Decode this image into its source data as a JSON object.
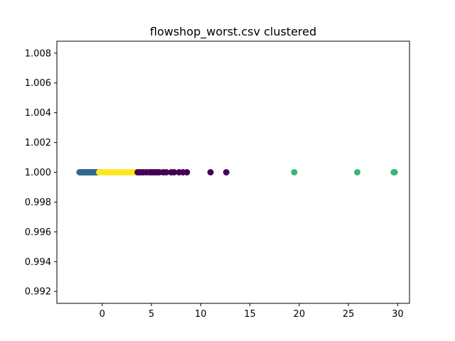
{
  "chart_data": {
    "type": "scatter",
    "title": "flowshop_worst.csv clustered",
    "xlabel": "",
    "ylabel": "",
    "xlim": [
      -4.6,
      31.2
    ],
    "ylim": [
      0.9912,
      1.0088
    ],
    "xticks": [
      0,
      5,
      10,
      15,
      20,
      25,
      30
    ],
    "xtick_labels": [
      "0",
      "5",
      "10",
      "15",
      "20",
      "25",
      "30"
    ],
    "yticks": [
      0.992,
      0.994,
      0.996,
      0.998,
      1.0,
      1.002,
      1.004,
      1.006,
      1.008
    ],
    "ytick_labels": [
      "0.992",
      "0.994",
      "0.996",
      "0.998",
      "1.000",
      "1.002",
      "1.004",
      "1.006",
      "1.008"
    ],
    "grid": false,
    "series": [
      {
        "color": "#31688e",
        "x": [
          -2.3,
          -2.2,
          -2.1,
          -2.0,
          -1.9,
          -1.8,
          -1.7,
          -1.6,
          -1.5,
          -1.4,
          -1.3,
          -1.2,
          -1.1,
          -1.0,
          -0.9,
          -0.8,
          -0.7,
          -0.6,
          -0.5
        ],
        "y": [
          1.0,
          1.0,
          1.0,
          1.0,
          1.0,
          1.0,
          1.0,
          1.0,
          1.0,
          1.0,
          1.0,
          1.0,
          1.0,
          1.0,
          1.0,
          1.0,
          1.0,
          1.0,
          1.0
        ]
      },
      {
        "color": "#fde725",
        "x": [
          -0.3,
          -0.1,
          0.1,
          0.3,
          0.5,
          0.7,
          0.9,
          1.1,
          1.3,
          1.5,
          1.7,
          1.9,
          2.1,
          2.3,
          2.5,
          2.7,
          2.9,
          3.1,
          3.3
        ],
        "y": [
          1.0,
          1.0,
          1.0,
          1.0,
          1.0,
          1.0,
          1.0,
          1.0,
          1.0,
          1.0,
          1.0,
          1.0,
          1.0,
          1.0,
          1.0,
          1.0,
          1.0,
          1.0,
          1.0
        ]
      },
      {
        "color": "#440154",
        "x": [
          3.6,
          3.8,
          4.0,
          4.2,
          4.5,
          4.8,
          5.0,
          5.2,
          5.4,
          5.6,
          5.8,
          6.2,
          6.5,
          7.0,
          7.3,
          7.8,
          8.2,
          8.6,
          11.0,
          12.6
        ],
        "y": [
          1.0,
          1.0,
          1.0,
          1.0,
          1.0,
          1.0,
          1.0,
          1.0,
          1.0,
          1.0,
          1.0,
          1.0,
          1.0,
          1.0,
          1.0,
          1.0,
          1.0,
          1.0,
          1.0,
          1.0
        ]
      },
      {
        "color": "#35b779",
        "x": [
          19.5,
          25.9,
          29.6,
          29.7
        ],
        "y": [
          1.0,
          1.0,
          1.0,
          1.0
        ]
      }
    ]
  }
}
